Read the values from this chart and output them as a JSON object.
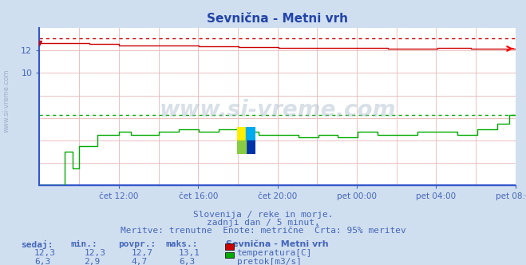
{
  "title": "Sevnična - Metni vrh",
  "bg_color": "#d0dff0",
  "plot_bg_color": "#ffffff",
  "grid_color": "#e8b8b8",
  "axis_color": "#4466bb",
  "title_color": "#2244aa",
  "tick_color": "#4466bb",
  "temp_color": "#cc0000",
  "flow_color": "#00aa00",
  "blue_spine": "#3355cc",
  "ylim": [
    8.0,
    13.5
  ],
  "yticks": [
    10,
    12
  ],
  "ytick_labels": [
    "10",
    "12"
  ],
  "xtick_labels": [
    "čet 12:00",
    "čet 16:00",
    "čet 20:00",
    "pet 00:00",
    "pet 04:00",
    "pet 08:00"
  ],
  "subtitle1": "Slovenija / reke in morje.",
  "subtitle2": "zadnji dan / 5 minut.",
  "subtitle3": "Meritve: trenutne  Enote: metrične  Črta: 95% meritev",
  "legend_title": "Sevnična - Metni vrh",
  "legend_rows": [
    {
      "sedaj": "12,3",
      "min": "12,3",
      "povpr": "12,7",
      "maks": "13,1",
      "color": "#cc0000",
      "label": "temperatura[C]"
    },
    {
      "sedaj": "6,3",
      "min": "2,9",
      "povpr": "4,7",
      "maks": "6,3",
      "color": "#00aa00",
      "label": "pretok[m3/s]"
    }
  ],
  "temp_max": 13.1,
  "flow_max": 6.3,
  "watermark_text": "www.si-vreme.com",
  "n_points": 288
}
